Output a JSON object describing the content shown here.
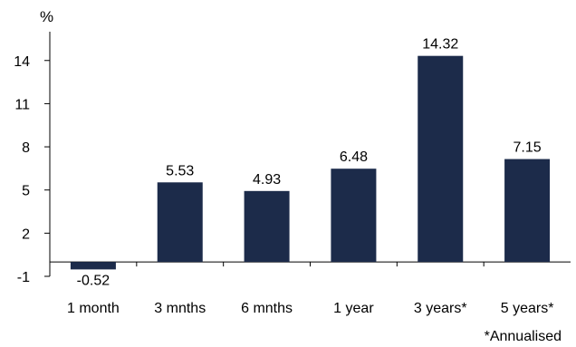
{
  "chart_data": {
    "type": "bar",
    "title": "",
    "xlabel": "",
    "ylabel": "%",
    "categories": [
      "1 month",
      "3 mnths",
      "6 mnths",
      "1 year",
      "3 years*",
      "5 years*"
    ],
    "values": [
      -0.52,
      5.53,
      4.93,
      6.48,
      14.32,
      7.15
    ],
    "data_labels": [
      "-0.52",
      "5.53",
      "4.93",
      "6.48",
      "14.32",
      "7.15"
    ],
    "yticks": [
      -1,
      2,
      5,
      8,
      11,
      14
    ],
    "ylim": [
      -1,
      16
    ],
    "grid": false,
    "legend": "none",
    "bar_color": "#1c2b4a",
    "footnote": "*Annualised"
  }
}
